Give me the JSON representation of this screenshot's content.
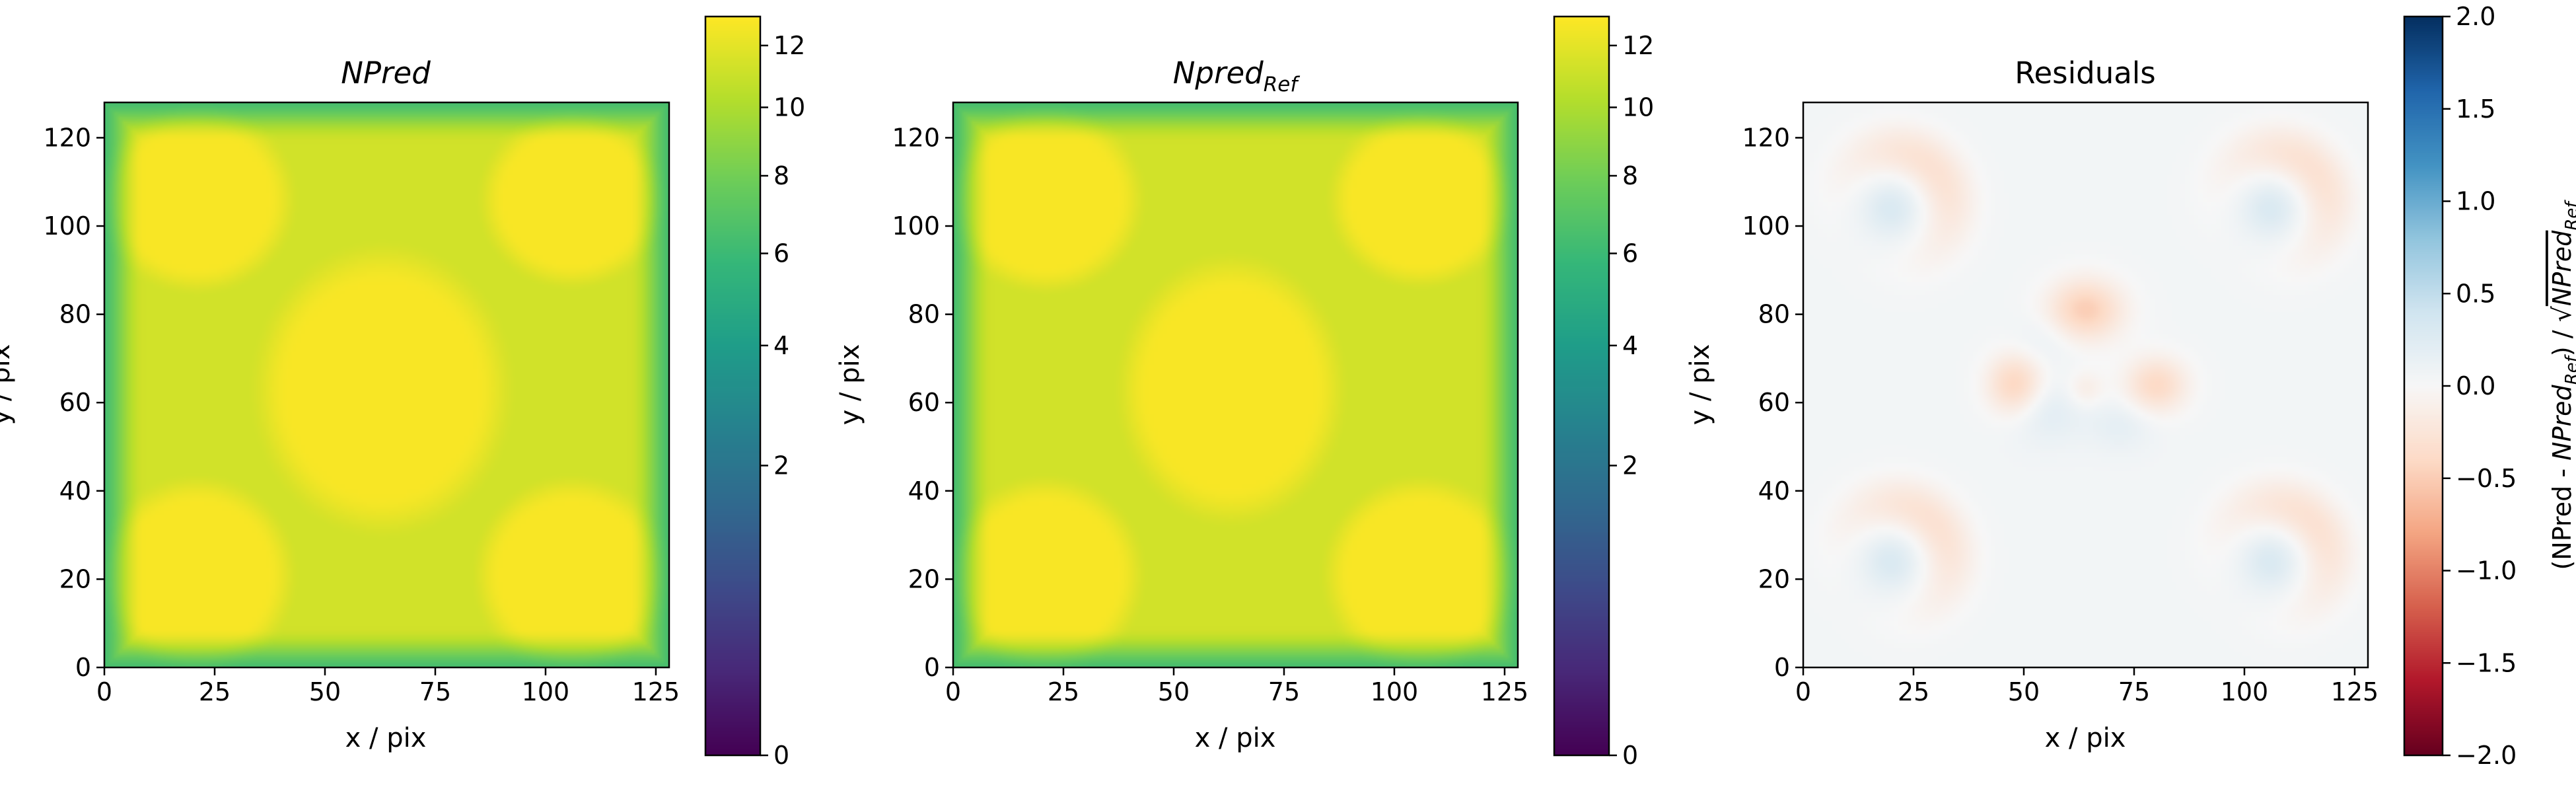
{
  "chart_data": [
    {
      "type": "heatmap",
      "title": "NPred",
      "title_style": "italic",
      "xlabel": "x / pix",
      "ylabel": "y / pix",
      "xlim": [
        0,
        128
      ],
      "ylim": [
        0,
        128
      ],
      "xticks": [
        0,
        25,
        50,
        75,
        100,
        125
      ],
      "yticks": [
        0,
        20,
        40,
        60,
        80,
        100,
        120
      ],
      "colormap": "viridis",
      "colorbar": {
        "scale": "sqrt",
        "range": [
          0,
          13
        ],
        "ticks": [
          0,
          2,
          4,
          6,
          8,
          10,
          12
        ],
        "label": ""
      },
      "field": {
        "background": 11.3,
        "blobs": [
          {
            "x": 21,
            "y": 106,
            "rx": 19,
            "ry": 18,
            "value": 12.8
          },
          {
            "x": 106,
            "y": 106,
            "rx": 18,
            "ry": 17,
            "value": 12.8
          },
          {
            "x": 21,
            "y": 21,
            "rx": 19,
            "ry": 19,
            "value": 12.8
          },
          {
            "x": 106,
            "y": 21,
            "rx": 19,
            "ry": 19,
            "value": 12.8
          },
          {
            "x": 63,
            "y": 63,
            "rx": 25,
            "ry": 28,
            "value": 12.8
          }
        ],
        "edge_falloff": true
      }
    },
    {
      "type": "heatmap",
      "title_main": "Npred",
      "title_sub": "Ref",
      "title_style": "italic",
      "xlabel": "x / pix",
      "ylabel": "y / pix",
      "xlim": [
        0,
        128
      ],
      "ylim": [
        0,
        128
      ],
      "xticks": [
        0,
        25,
        50,
        75,
        100,
        125
      ],
      "yticks": [
        0,
        20,
        40,
        60,
        80,
        100,
        120
      ],
      "colormap": "viridis",
      "colorbar": {
        "scale": "sqrt",
        "range": [
          0,
          13
        ],
        "ticks": [
          0,
          2,
          4,
          6,
          8,
          10,
          12
        ],
        "label": ""
      },
      "field": {
        "background": 11.3,
        "blobs": [
          {
            "x": 21,
            "y": 106,
            "rx": 19,
            "ry": 18,
            "value": 12.8
          },
          {
            "x": 106,
            "y": 106,
            "rx": 18,
            "ry": 17,
            "value": 12.8
          },
          {
            "x": 21,
            "y": 21,
            "rx": 19,
            "ry": 19,
            "value": 12.8
          },
          {
            "x": 106,
            "y": 21,
            "rx": 19,
            "ry": 19,
            "value": 12.8
          },
          {
            "x": 63,
            "y": 63,
            "rx": 22,
            "ry": 26,
            "value": 12.8
          }
        ],
        "edge_falloff": true
      }
    },
    {
      "type": "heatmap",
      "title": "Residuals",
      "title_style": "normal",
      "xlabel": "x / pix",
      "ylabel": "y / pix",
      "xlim": [
        0,
        128
      ],
      "ylim": [
        0,
        128
      ],
      "xticks": [
        0,
        25,
        50,
        75,
        100,
        125
      ],
      "yticks": [
        0,
        20,
        40,
        60,
        80,
        100,
        120
      ],
      "colormap": "RdBu",
      "colorbar": {
        "scale": "linear",
        "range": [
          -2.0,
          2.0
        ],
        "ticks": [
          -2.0,
          -1.5,
          -1.0,
          -0.5,
          0.0,
          0.5,
          1.0,
          1.5,
          2.0
        ],
        "tick_labels": [
          "−2.0",
          "−1.5",
          "−1.0",
          "−0.5",
          "0.0",
          "0.5",
          "1.0",
          "1.5",
          "2.0"
        ],
        "label_parts": [
          "(NPred - ",
          "NPred",
          "Ref",
          ") / √",
          "NPred",
          "Ref"
        ]
      },
      "field": {
        "background": 0.05,
        "bumps": [
          {
            "x": 64,
            "y": 81,
            "sx": 6,
            "sy": 5,
            "value": -0.55
          },
          {
            "x": 48,
            "y": 64,
            "sx": 4.5,
            "sy": 5,
            "value": -0.5
          },
          {
            "x": 80,
            "y": 64,
            "sx": 5,
            "sy": 4.5,
            "value": -0.45
          },
          {
            "x": 64,
            "y": 63,
            "sx": 3,
            "sy": 3,
            "value": -0.2
          },
          {
            "x": 55,
            "y": 58,
            "sx": 6,
            "sy": 5,
            "value": 0.18
          },
          {
            "x": 72,
            "y": 55,
            "sx": 5,
            "sy": 4,
            "value": 0.14
          },
          {
            "x": 55,
            "y": 74,
            "sx": 5,
            "sy": 4,
            "value": 0.1
          }
        ],
        "arcs": [
          {
            "x": 20,
            "y": 104,
            "r": 13,
            "w": 4.5,
            "ang": 45,
            "span": 95,
            "value": -0.35,
            "core": 0.25
          },
          {
            "x": 106,
            "y": 104,
            "r": 13,
            "w": 4.5,
            "ang": 45,
            "span": 95,
            "value": -0.35,
            "core": 0.25
          },
          {
            "x": 20,
            "y": 24,
            "r": 13,
            "w": 4.5,
            "ang": 45,
            "span": 95,
            "value": -0.35,
            "core": 0.25
          },
          {
            "x": 106,
            "y": 24,
            "r": 13,
            "w": 4.5,
            "ang": 45,
            "span": 95,
            "value": -0.35,
            "core": 0.25
          }
        ]
      }
    }
  ]
}
